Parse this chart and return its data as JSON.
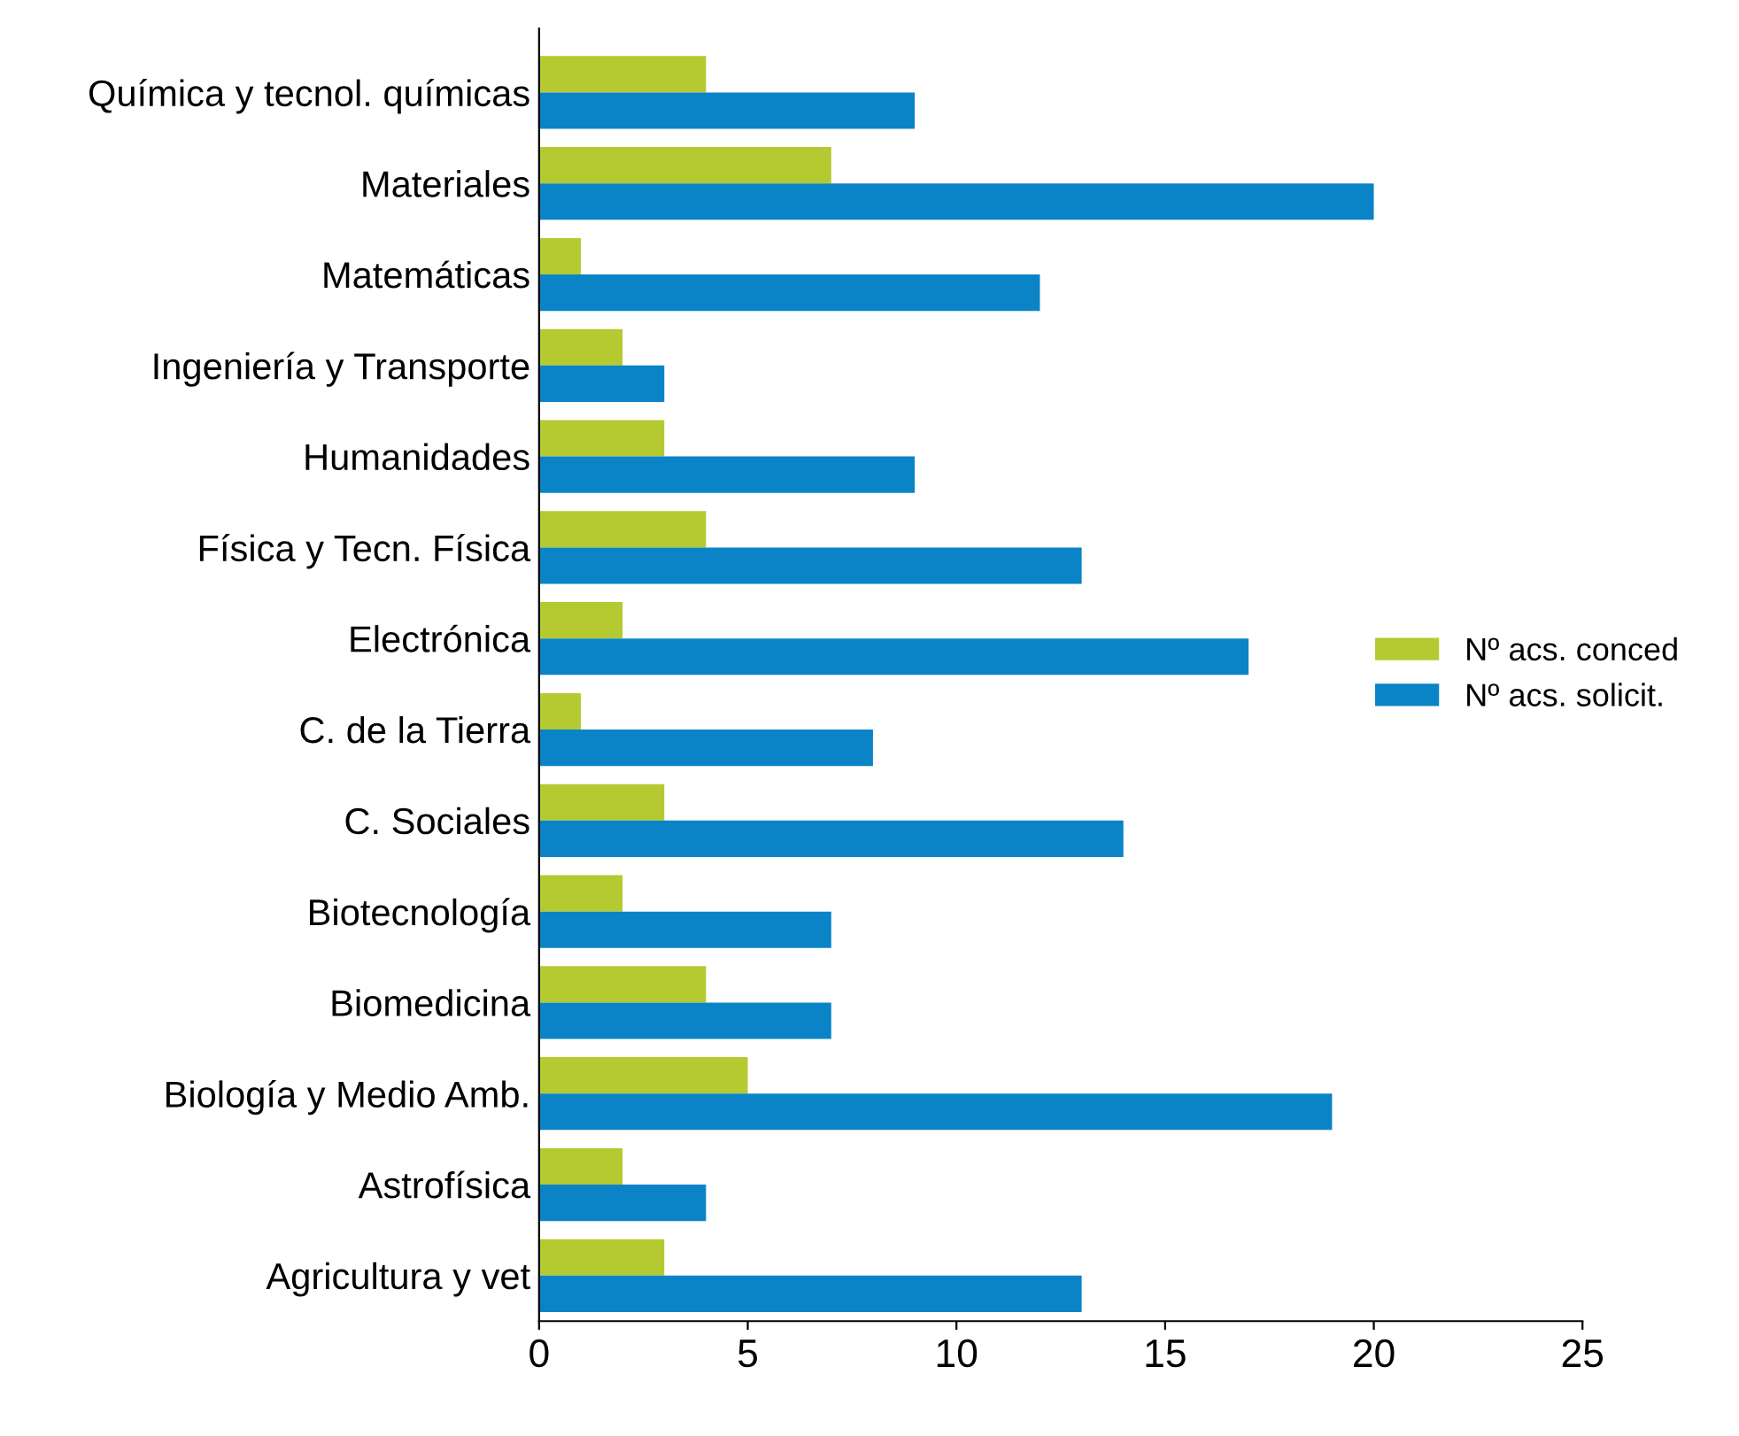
{
  "chart_data": {
    "type": "bar",
    "orientation": "horizontal",
    "categories": [
      "Química y tecnol. químicas",
      "Materiales",
      "Matemáticas",
      "Ingeniería y Transporte",
      "Humanidades",
      "Física y Tecn. Física",
      "Electrónica",
      "C. de la Tierra",
      "C. Sociales",
      "Biotecnología",
      "Biomedicina",
      "Biología y Medio Amb.",
      "Astrofísica",
      "Agricultura y vet"
    ],
    "series": [
      {
        "name": "Nº acs. conced",
        "color": "#b5c930",
        "values": [
          4,
          7,
          1,
          2,
          3,
          4,
          2,
          1,
          3,
          2,
          4,
          5,
          2,
          3
        ]
      },
      {
        "name": "Nº acs. solicit.",
        "color": "#0a84c6",
        "values": [
          9,
          20,
          12,
          3,
          9,
          13,
          17,
          8,
          14,
          7,
          7,
          19,
          4,
          13
        ]
      }
    ],
    "xlim": [
      0,
      25
    ],
    "xticks": [
      0,
      5,
      10,
      15,
      20,
      25
    ],
    "grid": false,
    "legend": "center right"
  }
}
